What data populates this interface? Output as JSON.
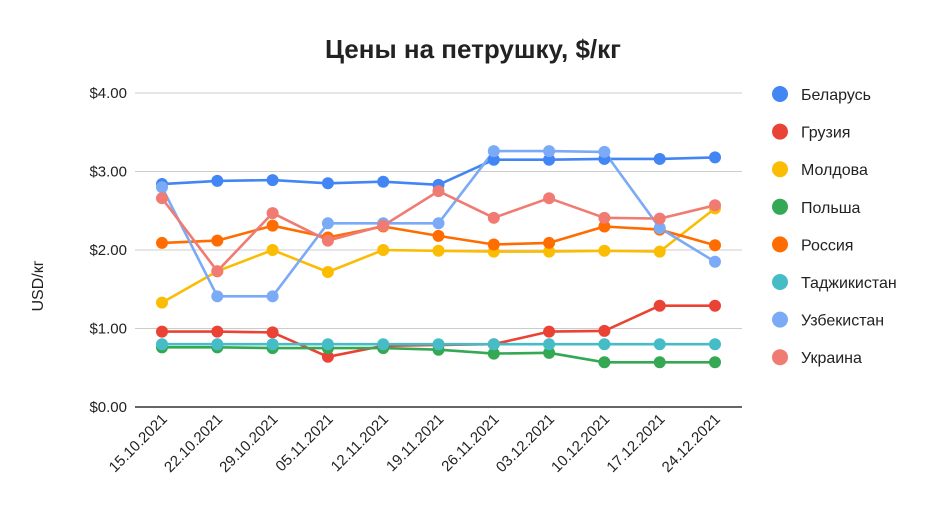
{
  "chart_data": {
    "type": "line",
    "title": "Цены  на петрушку, $/кг",
    "xlabel": "",
    "ylabel": "USD/кг",
    "ylim": [
      0,
      4
    ],
    "yticks": [
      "$0.00",
      "$1.00",
      "$2.00",
      "$3.00",
      "$4.00"
    ],
    "grid": true,
    "legend_position": "right",
    "categories": [
      "15.10.2021",
      "22.10.2021",
      "29.10.2021",
      "05.11.2021",
      "12.11.2021",
      "19.11.2021",
      "26.11.2021",
      "03.12.2021",
      "10.12.2021",
      "17.12.2021",
      "24.12.2021"
    ],
    "series": [
      {
        "name": "Беларусь",
        "color": "#4285f4",
        "values": [
          2.84,
          2.88,
          2.89,
          2.85,
          2.87,
          2.83,
          3.15,
          3.15,
          3.16,
          3.16,
          3.18
        ]
      },
      {
        "name": "Грузия",
        "color": "#ea4335",
        "values": [
          0.96,
          0.96,
          0.95,
          0.64,
          0.78,
          0.79,
          0.8,
          0.96,
          0.97,
          1.29,
          1.29
        ]
      },
      {
        "name": "Молдова",
        "color": "#fbbc04",
        "values": [
          1.33,
          1.73,
          2.0,
          1.72,
          2.0,
          1.99,
          1.98,
          1.98,
          1.99,
          1.98,
          2.53
        ]
      },
      {
        "name": "Польша",
        "color": "#34a853",
        "values": [
          0.76,
          0.76,
          0.75,
          0.75,
          0.75,
          0.73,
          0.68,
          0.69,
          0.57,
          0.57,
          0.57
        ]
      },
      {
        "name": "Россия",
        "color": "#ff6d01",
        "values": [
          2.09,
          2.12,
          2.31,
          2.16,
          2.3,
          2.18,
          2.07,
          2.09,
          2.3,
          2.26,
          2.06
        ]
      },
      {
        "name": "Таджикистан",
        "color": "#46bdc6",
        "values": [
          0.8,
          0.8,
          0.8,
          0.8,
          0.8,
          0.8,
          0.8,
          0.8,
          0.8,
          0.8,
          0.8
        ]
      },
      {
        "name": "Узбекистан",
        "color": "#7baaf7",
        "values": [
          2.8,
          1.41,
          1.41,
          2.34,
          2.34,
          2.34,
          3.26,
          3.26,
          3.25,
          2.28,
          1.85
        ]
      },
      {
        "name": "Украина",
        "color": "#f07b72",
        "values": [
          2.66,
          1.73,
          2.47,
          2.12,
          2.31,
          2.75,
          2.41,
          2.66,
          2.41,
          2.4,
          2.57
        ]
      }
    ]
  }
}
